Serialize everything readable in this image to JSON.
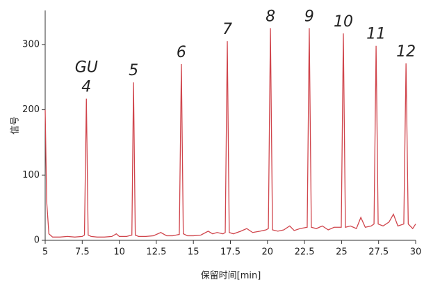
{
  "chart_data": {
    "type": "line",
    "xlabel": "保留时间[min]",
    "ylabel": "信号",
    "color": "#d0454c",
    "xlim": [
      5,
      30
    ],
    "xticks": [
      5,
      7.5,
      10,
      12.5,
      15,
      17.5,
      20,
      22.5,
      25,
      27.5,
      30
    ],
    "ylim": [
      0,
      350
    ],
    "yticks": [
      0,
      100,
      200,
      300
    ],
    "x": [
      5.0,
      5.1,
      5.25,
      5.5,
      6,
      6.5,
      7,
      7.5,
      7.65,
      7.78,
      7.9,
      8.1,
      8.5,
      9,
      9.5,
      9.8,
      10,
      10.5,
      10.85,
      10.96,
      11.08,
      11.3,
      11.8,
      12.3,
      12.8,
      13.2,
      13.6,
      14.05,
      14.19,
      14.32,
      14.6,
      15,
      15.5,
      16,
      16.3,
      16.6,
      17,
      17.15,
      17.29,
      17.42,
      17.7,
      18.2,
      18.6,
      19,
      19.5,
      19.9,
      20.06,
      20.2,
      20.34,
      20.7,
      21.1,
      21.5,
      21.8,
      22.2,
      22.68,
      22.82,
      22.96,
      23.3,
      23.7,
      24.1,
      24.5,
      24.98,
      25.12,
      25.26,
      25.6,
      26,
      26.3,
      26.6,
      27,
      27.19,
      27.33,
      27.47,
      27.8,
      28.2,
      28.5,
      28.8,
      29.2,
      29.35,
      29.5,
      29.8,
      30.0
    ],
    "values": [
      200,
      60,
      10,
      5,
      5,
      6,
      5,
      6,
      8,
      217,
      8,
      6,
      5,
      5,
      6,
      10,
      6,
      6,
      8,
      242,
      8,
      6,
      6,
      7,
      12,
      7,
      7,
      9,
      270,
      10,
      7,
      7,
      8,
      14,
      10,
      12,
      10,
      12,
      305,
      12,
      10,
      14,
      18,
      12,
      14,
      16,
      18,
      325,
      16,
      14,
      16,
      22,
      15,
      18,
      20,
      325,
      20,
      18,
      22,
      16,
      20,
      20,
      317,
      20,
      22,
      18,
      35,
      20,
      22,
      25,
      298,
      25,
      22,
      28,
      40,
      22,
      25,
      271,
      25,
      18,
      25
    ],
    "annotations": [
      {
        "text": "GU",
        "x": 7.78
      },
      {
        "text": "4",
        "x": 7.78
      },
      {
        "text": "5",
        "x": 10.96
      },
      {
        "text": "6",
        "x": 14.19
      },
      {
        "text": "7",
        "x": 17.29
      },
      {
        "text": "8",
        "x": 20.2
      },
      {
        "text": "9",
        "x": 22.82
      },
      {
        "text": "10",
        "x": 25.12
      },
      {
        "text": "11",
        "x": 27.33
      },
      {
        "text": "12",
        "x": 29.35
      }
    ]
  }
}
